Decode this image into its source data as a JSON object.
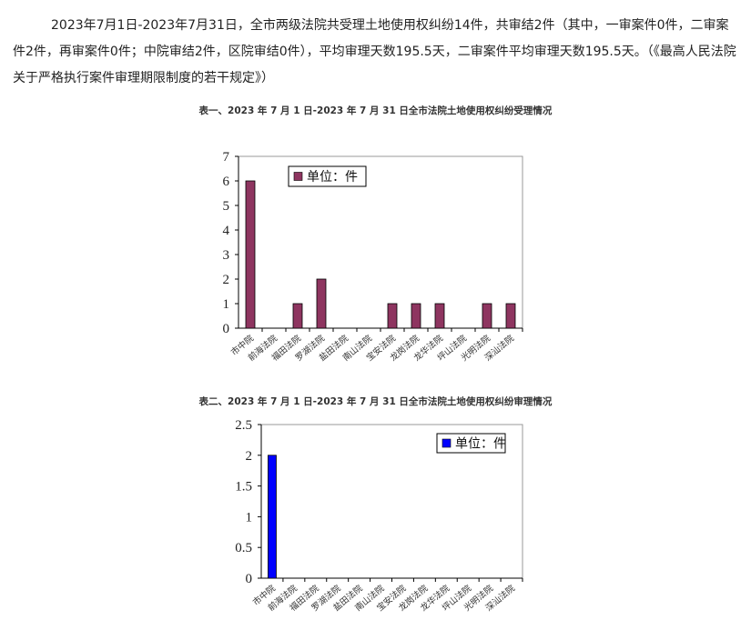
{
  "paragraph": "2023年7月1日-2023年7月31日，全市两级法院共受理土地使用权纠纷14件，共审结2件（其中，一审案件0件，二审案件2件，再审案件0件；中院审结2件，区院审结0件），平均审理天数195.5天，二审案件平均审理天数195.5天。（《最高人民法院关于严格执行案件审理期限制度的若干规定》）",
  "chart_data": [
    {
      "type": "bar",
      "title": "表一、2023 年 7 月 1 日-2023 年 7 月 31 日全市法院土地使用权纠纷受理情况",
      "categories": [
        "市中院",
        "前海法院",
        "福田法院",
        "罗湖法院",
        "盐田法院",
        "南山法院",
        "宝安法院",
        "龙岗法院",
        "龙华法院",
        "坪山法院",
        "光明法院",
        "深汕法院"
      ],
      "values": [
        6,
        0,
        1,
        2,
        0,
        0,
        1,
        1,
        1,
        0,
        1,
        1
      ],
      "yticks": [
        "0",
        "1",
        "2",
        "3",
        "4",
        "5",
        "6",
        "7"
      ],
      "ylim": [
        0,
        7
      ],
      "legend": "单位：件",
      "legend_position": "top-left",
      "color": "#8e3560",
      "grid": false
    },
    {
      "type": "bar",
      "title": "表二、2023 年 7 月 1 日-2023 年 7 月 31 日全市法院土地使用权纠纷审理情况",
      "categories": [
        "市中院",
        "前海法院",
        "福田法院",
        "罗湖法院",
        "盐田法院",
        "南山法院",
        "宝安法院",
        "龙岗法院",
        "龙华法院",
        "坪山法院",
        "光明法院",
        "深汕法院"
      ],
      "values": [
        2,
        0,
        0,
        0,
        0,
        0,
        0,
        0,
        0,
        0,
        0,
        0
      ],
      "yticks": [
        "0",
        "0.5",
        "1",
        "1.5",
        "2",
        "2.5"
      ],
      "ylim": [
        0,
        2.5
      ],
      "legend": "单位：件",
      "legend_position": "top-right",
      "color": "#0000ff",
      "grid": false
    }
  ]
}
